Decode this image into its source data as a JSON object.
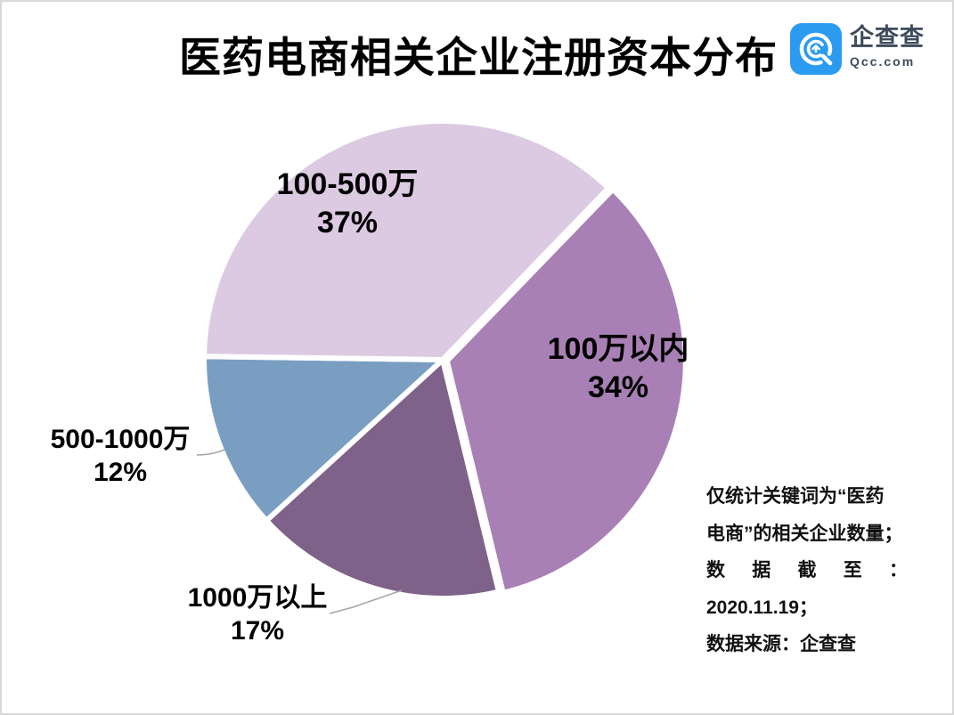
{
  "page": {
    "background": "#ffffff",
    "border_color": "#d8d8d8"
  },
  "header": {
    "title": "医药电商相关企业注册资本分布",
    "logo": {
      "brand_name": "企查查",
      "domain": "Qcc.com",
      "brand_color": "#2b9bf0",
      "text_color": "#3d4b5c"
    }
  },
  "chart_data": {
    "type": "pie",
    "title": "医药电商相关企业注册资本分布",
    "legend": "none",
    "direction": "clockwise",
    "start_angle_deg": 44,
    "slice_border_color": "#ffffff",
    "leader_line_color": "#a6a6a6",
    "slices": [
      {
        "label": "100万以内",
        "value": 34,
        "pct_label": "34%",
        "color": "#a980b5",
        "label_placement": "inside",
        "exploded": true,
        "leader_line": false
      },
      {
        "label": "1000万以上",
        "value": 17,
        "pct_label": "17%",
        "color": "#7e6289",
        "label_placement": "outside",
        "exploded": false,
        "leader_line": true
      },
      {
        "label": "500-1000万",
        "value": 12,
        "pct_label": "12%",
        "color": "#7a9ec2",
        "label_placement": "outside",
        "exploded": false,
        "leader_line": true
      },
      {
        "label": "100-500万",
        "value": 37,
        "pct_label": "37%",
        "color": "#dccae2",
        "label_placement": "inside",
        "exploded": false,
        "leader_line": false
      }
    ]
  },
  "footnote": {
    "full_text": "仅统计关键词为“医药电商”的相关企业数量；数据截至：2020.11.19；数据来源：企查查",
    "lines": [
      {
        "text": "仅统计关键词为“医药",
        "justify": false
      },
      {
        "text": "电商”的相关企业数量；",
        "justify": false
      },
      {
        "text": "数据截至：",
        "justify": true
      },
      {
        "text": "2020.11.19；",
        "justify": false
      },
      {
        "text": "数据来源：企查查",
        "justify": false
      }
    ]
  }
}
